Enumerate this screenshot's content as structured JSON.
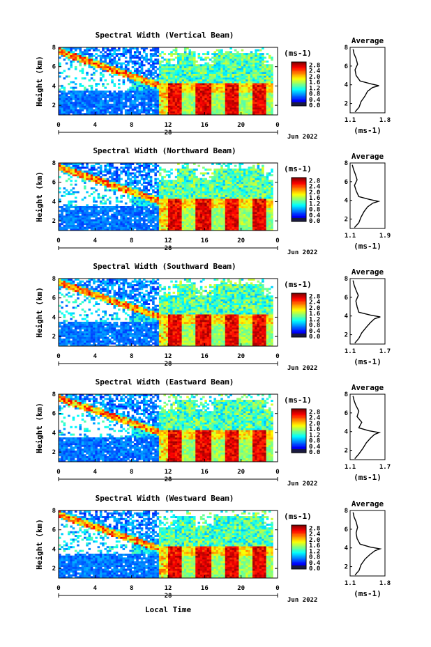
{
  "chart_data": [
    {
      "type": "heatmap",
      "title": "Spectral Width (Vertical Beam)",
      "ylabel": "Height (km)",
      "x_ticks": [
        "0",
        "4",
        "8",
        "12",
        "16",
        "20",
        "0"
      ],
      "xlim": [
        0,
        24
      ],
      "date_label": "28",
      "date_right": "Jun 2022",
      "y_ticks": [
        "2",
        "4",
        "6",
        "8"
      ],
      "ylim": [
        1,
        8
      ],
      "colorbar": {
        "unit": "(ms-1)",
        "ticks": [
          "0.0",
          "0.4",
          "0.8",
          "1.2",
          "1.6",
          "2.0",
          "2.4",
          "2.8"
        ],
        "range": [
          0,
          3.0
        ]
      },
      "average": {
        "title": "Average",
        "xlabel": "(ms-1)",
        "x_ticks": [
          "1.1",
          "1.8"
        ],
        "xlim": [
          1.1,
          1.8
        ],
        "y_ticks": [
          "2",
          "4",
          "6",
          "8"
        ],
        "height": [
          1.1,
          1.6,
          2.2,
          2.8,
          3.3,
          3.7,
          3.9,
          4.1,
          4.4,
          5.0,
          5.6,
          6.2,
          6.8,
          7.3,
          7.8
        ],
        "value": [
          1.2,
          1.28,
          1.32,
          1.4,
          1.45,
          1.55,
          1.68,
          1.52,
          1.3,
          1.22,
          1.2,
          1.25,
          1.22,
          1.18,
          1.16
        ]
      }
    },
    {
      "type": "heatmap",
      "title": "Spectral Width (Northward Beam)",
      "ylabel": "Height (km)",
      "x_ticks": [
        "0",
        "4",
        "8",
        "12",
        "16",
        "20",
        "0"
      ],
      "xlim": [
        0,
        24
      ],
      "date_label": "28",
      "date_right": "Jun 2022",
      "y_ticks": [
        "2",
        "4",
        "6",
        "8"
      ],
      "ylim": [
        1,
        8
      ],
      "colorbar": {
        "unit": "(ms-1)",
        "ticks": [
          "0.0",
          "0.4",
          "0.8",
          "1.2",
          "1.6",
          "2.0",
          "2.4",
          "2.8"
        ],
        "range": [
          0,
          3.0
        ]
      },
      "average": {
        "title": "Average",
        "xlabel": "(ms-1)",
        "x_ticks": [
          "1.1",
          "1.9"
        ],
        "xlim": [
          1.1,
          1.9
        ],
        "y_ticks": [
          "2",
          "4",
          "6",
          "8"
        ],
        "height": [
          1.1,
          1.6,
          2.2,
          2.8,
          3.3,
          3.7,
          3.9,
          4.1,
          4.4,
          5.0,
          5.6,
          6.2,
          6.8,
          7.3,
          7.8
        ],
        "value": [
          1.2,
          1.3,
          1.35,
          1.42,
          1.5,
          1.62,
          1.75,
          1.55,
          1.3,
          1.24,
          1.2,
          1.26,
          1.22,
          1.18,
          1.15
        ]
      }
    },
    {
      "type": "heatmap",
      "title": "Spectral Width (Southward Beam)",
      "ylabel": "Height (km)",
      "x_ticks": [
        "0",
        "4",
        "8",
        "12",
        "16",
        "20",
        "0"
      ],
      "xlim": [
        0,
        24
      ],
      "date_label": "28",
      "date_right": "Jun 2022",
      "y_ticks": [
        "2",
        "4",
        "6",
        "8"
      ],
      "ylim": [
        1,
        8
      ],
      "colorbar": {
        "unit": "(ms-1)",
        "ticks": [
          "0.0",
          "0.4",
          "0.8",
          "1.2",
          "1.6",
          "2.0",
          "2.4",
          "2.8"
        ],
        "range": [
          0,
          3.0
        ]
      },
      "average": {
        "title": "Average",
        "xlabel": "(ms-1)",
        "x_ticks": [
          "1.1",
          "1.7"
        ],
        "xlim": [
          1.1,
          1.7
        ],
        "y_ticks": [
          "2",
          "4",
          "6",
          "8"
        ],
        "height": [
          1.1,
          1.6,
          2.2,
          2.8,
          3.3,
          3.7,
          3.9,
          4.1,
          4.4,
          5.0,
          5.6,
          6.2,
          6.8,
          7.3,
          7.8
        ],
        "value": [
          1.18,
          1.25,
          1.3,
          1.38,
          1.45,
          1.52,
          1.62,
          1.45,
          1.25,
          1.22,
          1.2,
          1.24,
          1.2,
          1.17,
          1.15
        ]
      }
    },
    {
      "type": "heatmap",
      "title": "Spectral Width (Eastward Beam)",
      "ylabel": "Height (km)",
      "x_ticks": [
        "0",
        "4",
        "8",
        "12",
        "16",
        "20",
        "0"
      ],
      "xlim": [
        0,
        24
      ],
      "date_label": "28",
      "date_right": "Jun 2022",
      "y_ticks": [
        "2",
        "4",
        "6",
        "8"
      ],
      "ylim": [
        1,
        8
      ],
      "colorbar": {
        "unit": "(ms-1)",
        "ticks": [
          "0.0",
          "0.4",
          "0.8",
          "1.2",
          "1.6",
          "2.0",
          "2.4",
          "2.8"
        ],
        "range": [
          0,
          3.0
        ]
      },
      "average": {
        "title": "Average",
        "xlabel": "(ms-1)",
        "x_ticks": [
          "1.1",
          "1.7"
        ],
        "xlim": [
          1.1,
          1.7
        ],
        "y_ticks": [
          "2",
          "4",
          "6",
          "8"
        ],
        "height": [
          1.1,
          1.6,
          2.2,
          2.8,
          3.3,
          3.7,
          3.9,
          4.1,
          4.4,
          5.0,
          5.6,
          6.2,
          6.8,
          7.3,
          7.8
        ],
        "value": [
          1.18,
          1.25,
          1.32,
          1.38,
          1.45,
          1.52,
          1.6,
          1.42,
          1.25,
          1.3,
          1.22,
          1.25,
          1.2,
          1.17,
          1.15
        ]
      }
    },
    {
      "type": "heatmap",
      "title": "Spectral Width (Westward Beam)",
      "ylabel": "Height (km)",
      "x_ticks": [
        "0",
        "4",
        "8",
        "12",
        "16",
        "20",
        "0"
      ],
      "xlim": [
        0,
        24
      ],
      "date_label": "28",
      "date_right": "Jun 2022",
      "y_ticks": [
        "2",
        "4",
        "6",
        "8"
      ],
      "ylim": [
        1,
        8
      ],
      "colorbar": {
        "unit": "(ms-1)",
        "ticks": [
          "0.0",
          "0.4",
          "0.8",
          "1.2",
          "1.6",
          "2.0",
          "2.4",
          "2.8"
        ],
        "range": [
          0,
          3.0
        ]
      },
      "average": {
        "title": "Average",
        "xlabel": "(ms-1)",
        "x_ticks": [
          "1.1",
          "1.8"
        ],
        "xlim": [
          1.1,
          1.8
        ],
        "y_ticks": [
          "2",
          "4",
          "6",
          "8"
        ],
        "height": [
          1.1,
          1.6,
          2.2,
          2.8,
          3.3,
          3.7,
          3.9,
          4.1,
          4.4,
          5.0,
          5.6,
          6.2,
          6.8,
          7.3,
          7.8
        ],
        "value": [
          1.2,
          1.28,
          1.32,
          1.4,
          1.5,
          1.6,
          1.7,
          1.5,
          1.3,
          1.24,
          1.22,
          1.25,
          1.22,
          1.18,
          1.16
        ]
      }
    }
  ],
  "footer": {
    "xlabel": "Local Time"
  }
}
